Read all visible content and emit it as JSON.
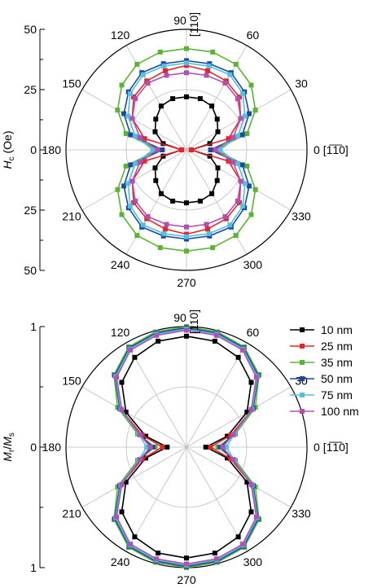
{
  "chart_data": [
    {
      "type": "polar-line",
      "ylabel": "Hc (Oe)",
      "ylabel_main": "H",
      "ylabel_sub": "c",
      "ylabel_unit": " (Oe)",
      "radial_range": [
        0,
        50
      ],
      "radial_ticks": [
        0,
        25,
        50
      ],
      "angle_ticks": [
        0,
        30,
        60,
        90,
        120,
        150,
        180,
        210,
        240,
        270,
        300,
        330
      ],
      "label_0": "0",
      "label_0_dir": "[1̅1̅0]",
      "label_90_dir": "[110]",
      "grid": true,
      "angles": [
        0,
        15,
        30,
        45,
        60,
        75,
        90,
        105,
        120,
        135,
        150,
        165,
        180,
        195,
        210,
        225,
        240,
        255,
        270,
        285,
        300,
        315,
        330,
        345
      ],
      "series": [
        {
          "name": "10 nm",
          "color": "#000000",
          "values": [
            2,
            10,
            15,
            18,
            21,
            22,
            22,
            22,
            21,
            18,
            15,
            10,
            2,
            10,
            15,
            18,
            21,
            22,
            22,
            22,
            21,
            18,
            15,
            10
          ]
        },
        {
          "name": "25 nm",
          "color": "#e8242b",
          "values": [
            2,
            18,
            26,
            31,
            33,
            34,
            35,
            34,
            33,
            31,
            26,
            18,
            2,
            18,
            26,
            31,
            33,
            34,
            35,
            34,
            33,
            31,
            26,
            18
          ]
        },
        {
          "name": "35 nm",
          "color": "#5bb336",
          "values": [
            12,
            26,
            33,
            38,
            41,
            42,
            42,
            42,
            41,
            38,
            33,
            26,
            12,
            26,
            33,
            38,
            41,
            42,
            42,
            42,
            41,
            38,
            33,
            26
          ]
        },
        {
          "name": "50 nm",
          "color": "#1a4a9c",
          "values": [
            10,
            24,
            30,
            34,
            37,
            37,
            37,
            37,
            37,
            34,
            30,
            24,
            10,
            24,
            30,
            34,
            37,
            37,
            37,
            37,
            37,
            34,
            30,
            24
          ]
        },
        {
          "name": "75 nm",
          "color": "#52c0e0",
          "values": [
            14,
            22,
            28,
            33,
            36,
            36,
            36,
            36,
            36,
            33,
            28,
            22,
            14,
            22,
            28,
            33,
            36,
            36,
            36,
            36,
            36,
            33,
            28,
            22
          ]
        },
        {
          "name": "100 nm",
          "color": "#b050b0",
          "values": [
            12,
            20,
            26,
            30,
            32,
            32,
            32,
            32,
            32,
            30,
            26,
            20,
            12,
            20,
            26,
            30,
            32,
            32,
            32,
            32,
            32,
            30,
            26,
            20
          ]
        }
      ]
    },
    {
      "type": "polar-line",
      "ylabel": "Mr/Ms",
      "ylabel_m1": "M",
      "ylabel_s1": "r",
      "ylabel_slash": "/",
      "ylabel_m2": "M",
      "ylabel_s2": "s",
      "radial_range": [
        0,
        1
      ],
      "radial_ticks": [
        0,
        1
      ],
      "angle_ticks": [
        0,
        30,
        60,
        90,
        120,
        150,
        180,
        210,
        240,
        270,
        300,
        330
      ],
      "label_0": "0",
      "label_0_dir": "[1̅1̅0]",
      "label_90_dir": "[110]",
      "grid": true,
      "legend_position": "top-right",
      "angles": [
        0,
        15,
        30,
        45,
        60,
        75,
        90,
        105,
        120,
        135,
        150,
        165,
        180,
        195,
        210,
        225,
        240,
        255,
        270,
        285,
        300,
        315,
        330,
        345
      ],
      "series": [
        {
          "name": "10 nm",
          "color": "#000000",
          "values": [
            0.16,
            0.35,
            0.58,
            0.76,
            0.86,
            0.91,
            0.92,
            0.91,
            0.86,
            0.76,
            0.58,
            0.35,
            0.16,
            0.35,
            0.58,
            0.76,
            0.86,
            0.91,
            0.92,
            0.91,
            0.86,
            0.76,
            0.58,
            0.35
          ]
        },
        {
          "name": "25 nm",
          "color": "#e8242b",
          "values": [
            0.2,
            0.38,
            0.63,
            0.83,
            0.94,
            0.98,
            0.99,
            0.98,
            0.94,
            0.83,
            0.63,
            0.38,
            0.2,
            0.38,
            0.63,
            0.83,
            0.94,
            0.98,
            0.99,
            0.98,
            0.94,
            0.83,
            0.63,
            0.38
          ]
        },
        {
          "name": "35 nm",
          "color": "#5bb336",
          "values": [
            0.26,
            0.42,
            0.66,
            0.85,
            0.96,
            0.99,
            1.0,
            0.99,
            0.96,
            0.85,
            0.66,
            0.42,
            0.26,
            0.42,
            0.66,
            0.85,
            0.96,
            0.99,
            1.0,
            0.99,
            0.96,
            0.85,
            0.66,
            0.42
          ]
        },
        {
          "name": "50 nm",
          "color": "#1a4a9c",
          "values": [
            0.28,
            0.4,
            0.64,
            0.84,
            0.95,
            0.98,
            0.99,
            0.98,
            0.95,
            0.84,
            0.64,
            0.4,
            0.28,
            0.4,
            0.64,
            0.84,
            0.95,
            0.98,
            0.99,
            0.98,
            0.95,
            0.84,
            0.64,
            0.4
          ]
        },
        {
          "name": "75 nm",
          "color": "#52c0e0",
          "values": [
            0.33,
            0.41,
            0.63,
            0.83,
            0.94,
            0.97,
            0.98,
            0.97,
            0.94,
            0.83,
            0.63,
            0.41,
            0.33,
            0.41,
            0.63,
            0.83,
            0.94,
            0.97,
            0.98,
            0.97,
            0.94,
            0.83,
            0.63,
            0.41
          ]
        },
        {
          "name": "100 nm",
          "color": "#b050b0",
          "values": [
            0.3,
            0.4,
            0.62,
            0.82,
            0.93,
            0.96,
            0.97,
            0.96,
            0.93,
            0.82,
            0.62,
            0.4,
            0.3,
            0.4,
            0.62,
            0.82,
            0.93,
            0.96,
            0.97,
            0.96,
            0.93,
            0.82,
            0.62,
            0.4
          ]
        }
      ]
    }
  ]
}
